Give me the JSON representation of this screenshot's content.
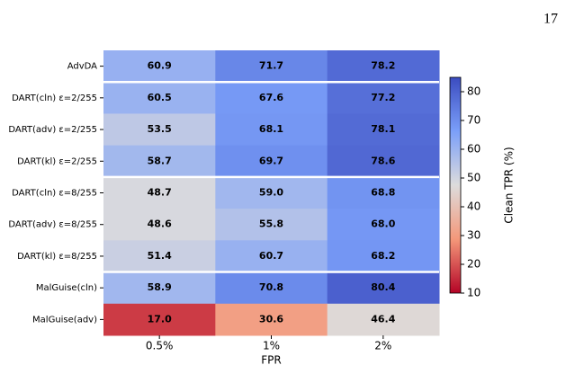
{
  "page_number": "17",
  "chart_data": {
    "type": "heatmap",
    "rows": [
      "AdvDA",
      "DART(cln) ε=2/255",
      "DART(adv) ε=2/255",
      "DART(kl) ε=2/255",
      "DART(cln) ε=8/255",
      "DART(adv) ε=8/255",
      "DART(kl) ε=8/255",
      "MalGuise(cln)",
      "MalGuise(adv)"
    ],
    "categories": [
      "0.5%",
      "1%",
      "2%"
    ],
    "x_label": "FPR",
    "values": [
      [
        60.9,
        71.7,
        78.2
      ],
      [
        60.5,
        67.6,
        77.2
      ],
      [
        53.5,
        68.1,
        78.1
      ],
      [
        58.7,
        69.7,
        78.6
      ],
      [
        48.7,
        59.0,
        68.8
      ],
      [
        48.6,
        55.8,
        68.0
      ],
      [
        51.4,
        60.7,
        68.2
      ],
      [
        58.9,
        70.8,
        80.4
      ],
      [
        17.0,
        30.6,
        46.4
      ]
    ],
    "value_labels": [
      [
        "60.9",
        "71.7",
        "78.2"
      ],
      [
        "60.5",
        "67.6",
        "77.2"
      ],
      [
        "53.5",
        "68.1",
        "78.1"
      ],
      [
        "58.7",
        "69.7",
        "78.6"
      ],
      [
        "48.7",
        "59.0",
        "68.8"
      ],
      [
        "48.6",
        "55.8",
        "68.0"
      ],
      [
        "51.4",
        "60.7",
        "68.2"
      ],
      [
        "58.9",
        "70.8",
        "80.4"
      ],
      [
        "17.0",
        "30.6",
        "46.4"
      ]
    ],
    "value_label_colors": [
      [
        "#000",
        "#000",
        "#000"
      ],
      [
        "#000",
        "#000",
        "#000"
      ],
      [
        "#000",
        "#000",
        "#000"
      ],
      [
        "#000",
        "#000",
        "#000"
      ],
      [
        "#000",
        "#000",
        "#000"
      ],
      [
        "#000",
        "#000",
        "#000"
      ],
      [
        "#000",
        "#000",
        "#000"
      ],
      [
        "#000",
        "#000",
        "#000"
      ],
      [
        "#fff",
        "#fff",
        "#000"
      ]
    ],
    "colormap": [
      "#b40426",
      "#f4987a",
      "#dddcdc",
      "#7b9ff9",
      "#3b4cc0"
    ],
    "clim": [
      10,
      85
    ],
    "colorbar_ticks": [
      10,
      20,
      30,
      40,
      50,
      60,
      70,
      80
    ],
    "colorbar_label": "Clean TPR (%)",
    "separators_after_rows": [
      0,
      3,
      6
    ]
  }
}
